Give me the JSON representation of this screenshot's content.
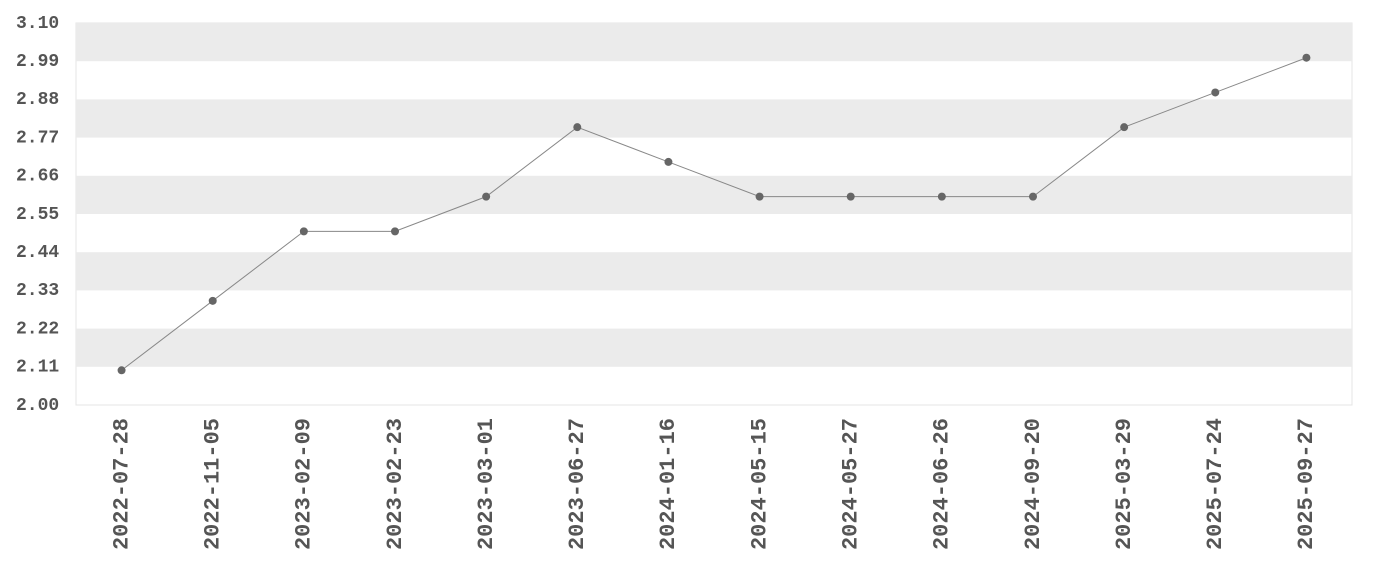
{
  "chart_data": {
    "type": "line",
    "categories": [
      "2022-07-28",
      "2022-11-05",
      "2023-02-09",
      "2023-02-23",
      "2023-03-01",
      "2023-06-27",
      "2024-01-16",
      "2024-05-15",
      "2024-05-27",
      "2024-06-26",
      "2024-09-20",
      "2025-03-29",
      "2025-07-24",
      "2025-09-27"
    ],
    "values": [
      2.1,
      2.3,
      2.5,
      2.5,
      2.6,
      2.8,
      2.7,
      2.6,
      2.6,
      2.6,
      2.6,
      2.8,
      2.9,
      3.0
    ],
    "color": "#666666",
    "ylim": [
      2.0,
      3.1
    ],
    "yticks": [
      {
        "value": 2.0,
        "label": "2.00"
      },
      2.11,
      2.22,
      2.33,
      2.44,
      2.55,
      2.66,
      2.77,
      2.88,
      2.99,
      {
        "value": 3.1,
        "label": "3.10"
      }
    ],
    "grid": true
  }
}
